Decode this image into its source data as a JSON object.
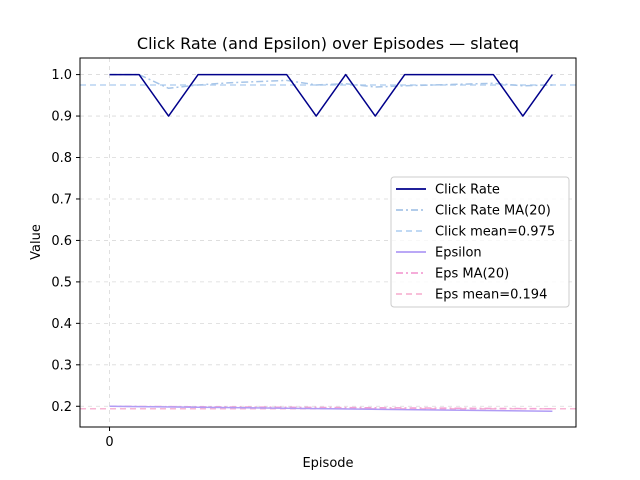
{
  "chart_data": {
    "type": "line",
    "title": "Click Rate (and Epsilon) over Episodes — slateq",
    "xlabel": "Episode",
    "ylabel": "Value",
    "xlim": [
      -1,
      15.8
    ],
    "ylim": [
      0.15,
      1.04
    ],
    "x_ticks": [
      0
    ],
    "x_tick_labels": [
      "0"
    ],
    "y_ticks": [
      0.2,
      0.3,
      0.4,
      0.5,
      0.6,
      0.7,
      0.8,
      0.9,
      1.0
    ],
    "y_tick_labels": [
      "0.2",
      "0.3",
      "0.4",
      "0.5",
      "0.6",
      "0.7",
      "0.8",
      "0.9",
      "1.0"
    ],
    "grid": true,
    "legend_position": "center-right",
    "series": [
      {
        "name": "Click Rate",
        "style": "solid",
        "color": "#00008b",
        "x": [
          0,
          1,
          2,
          3,
          4,
          5,
          6,
          7,
          8,
          9,
          10,
          11,
          12,
          13,
          14,
          15
        ],
        "values": [
          1.0,
          1.0,
          0.9,
          1.0,
          1.0,
          1.0,
          1.0,
          0.9,
          1.0,
          0.9,
          1.0,
          1.0,
          1.0,
          1.0,
          0.9,
          1.0
        ]
      },
      {
        "name": "Click Rate MA(20)",
        "style": "dashdot",
        "color": "#a7c5e8",
        "x": [
          0,
          1,
          2,
          3,
          4,
          5,
          6,
          7,
          8,
          9,
          10,
          11,
          12,
          13,
          14,
          15
        ],
        "values": [
          1.0,
          1.0,
          0.967,
          0.975,
          0.98,
          0.983,
          0.986,
          0.975,
          0.978,
          0.97,
          0.973,
          0.975,
          0.977,
          0.979,
          0.973,
          0.975
        ]
      },
      {
        "name": "Click mean=0.975",
        "style": "dashed",
        "color": "#b8d4f2",
        "x": [
          -1,
          15.8
        ],
        "values": [
          0.975,
          0.975
        ]
      },
      {
        "name": "Epsilon",
        "style": "solid",
        "color": "#b09cf5",
        "x": [
          0,
          15
        ],
        "values": [
          0.2,
          0.188
        ]
      },
      {
        "name": "Eps MA(20)",
        "style": "dashdot",
        "color": "#f4a1d4",
        "x": [
          0,
          15
        ],
        "values": [
          0.2,
          0.194
        ]
      },
      {
        "name": "Eps mean=0.194",
        "style": "dashed",
        "color": "#f7b6d4",
        "x": [
          -1,
          15.8
        ],
        "values": [
          0.194,
          0.194
        ]
      }
    ]
  }
}
